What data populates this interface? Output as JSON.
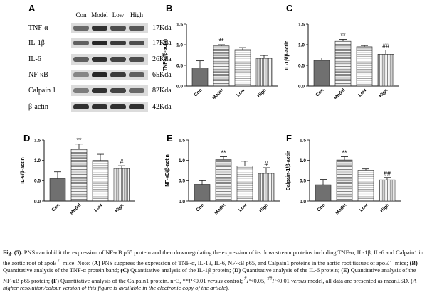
{
  "blot": {
    "letter": "A",
    "lanes": [
      "Con",
      "Model",
      "Low",
      "High"
    ],
    "rows": [
      {
        "protein": "TNF-α",
        "size": "17Kda",
        "intensity": [
          0.55,
          0.85,
          0.7,
          0.65
        ]
      },
      {
        "protein": "IL-1β",
        "size": "17Kda",
        "intensity": [
          0.6,
          0.9,
          0.8,
          0.7
        ]
      },
      {
        "protein": "IL-6",
        "size": "26Kda",
        "intensity": [
          0.6,
          0.85,
          0.75,
          0.7
        ]
      },
      {
        "protein": "NF-κB",
        "size": "65Kda",
        "intensity": [
          0.4,
          0.9,
          0.8,
          0.6
        ]
      },
      {
        "protein": "Calpain 1",
        "size": "82Kda",
        "intensity": [
          0.45,
          0.85,
          0.75,
          0.55
        ]
      },
      {
        "protein": "β-actin",
        "size": "42Kda",
        "intensity": [
          0.85,
          0.85,
          0.85,
          0.85
        ]
      }
    ]
  },
  "chart_data": [
    {
      "panel": "B",
      "type": "bar",
      "ylabel": "TNF-α/β-actin",
      "categories": [
        "Con",
        "Model",
        "Low",
        "High"
      ],
      "values": [
        0.44,
        0.97,
        0.88,
        0.67
      ],
      "errors": [
        0.17,
        0.03,
        0.05,
        0.07
      ],
      "ylim": [
        0,
        1.5
      ],
      "yticks": [
        "0.0",
        "0.5",
        "1.0",
        "1.5"
      ],
      "annotations": [
        "",
        "**",
        "",
        ""
      ]
    },
    {
      "panel": "C",
      "type": "bar",
      "ylabel": "IL-1β/β-actin",
      "categories": [
        "Con",
        "Model",
        "Low",
        "High"
      ],
      "values": [
        0.62,
        1.1,
        0.95,
        0.77
      ],
      "errors": [
        0.06,
        0.03,
        0.03,
        0.1
      ],
      "ylim": [
        0,
        1.5
      ],
      "yticks": [
        "0.0",
        "0.5",
        "1.0",
        "1.5"
      ],
      "annotations": [
        "",
        "**",
        "",
        "##"
      ]
    },
    {
      "panel": "D",
      "type": "bar",
      "ylabel": "IL-6/β-actin",
      "categories": [
        "Con",
        "Model",
        "Low",
        "High"
      ],
      "values": [
        0.55,
        1.27,
        1.0,
        0.8
      ],
      "errors": [
        0.17,
        0.13,
        0.15,
        0.07
      ],
      "ylim": [
        0,
        1.5
      ],
      "yticks": [
        "0.0",
        "0.5",
        "1.0",
        "1.5"
      ],
      "annotations": [
        "",
        "**",
        "",
        "#"
      ]
    },
    {
      "panel": "E",
      "type": "bar",
      "ylabel": "NF-κB/β-actin",
      "categories": [
        "Con",
        "Model",
        "Low",
        "High"
      ],
      "values": [
        0.41,
        1.02,
        0.86,
        0.68
      ],
      "errors": [
        0.09,
        0.07,
        0.12,
        0.14
      ],
      "ylim": [
        0,
        1.5
      ],
      "yticks": [
        "0.0",
        "0.5",
        "1.0",
        "1.5"
      ],
      "annotations": [
        "",
        "**",
        "",
        "#"
      ]
    },
    {
      "panel": "F",
      "type": "bar",
      "ylabel": "Calpain-1/β-actin",
      "categories": [
        "Con",
        "Model",
        "Low",
        "High"
      ],
      "values": [
        0.4,
        1.01,
        0.76,
        0.52
      ],
      "errors": [
        0.13,
        0.08,
        0.03,
        0.06
      ],
      "ylim": [
        0,
        1.5
      ],
      "yticks": [
        "0.0",
        "0.5",
        "1.0",
        "1.5"
      ],
      "annotations": [
        "",
        "**",
        "",
        "##"
      ]
    }
  ],
  "colors": {
    "con_fill": "#707070",
    "bar_stroke": "#222222"
  },
  "caption": {
    "fig_label": "Fig. (5).",
    "line1": " PNS can inhibit the expression of NF-κB p65 protein and then downregulating the expression of its downstream proteins including TNF-α,",
    "line2": "IL-1β, IL-6 and Calpain1 in the aortic root of apoE",
    "sup1": "-/-",
    "line2b": " mice. Note: ",
    "line2c": "(A)",
    "line2d": " PNS suppress the expression of TNF-α, IL-1β, IL-6, NF-κB p65, and Calpain1",
    "line3": "proteins in the aortic root tissues of apoE",
    "sup2": "-/-",
    "line3b": " mice; ",
    "line3c": "(B)",
    "line3d": " Quantitative analysis of the TNF-α protein band; ",
    "line3e": "(C)",
    "line3f": " Quantitative analysis of the IL-1β protein;",
    "line4a": "(D)",
    "line4b": " Quantitative analysis of the IL-6 protein; ",
    "line4c": "(E)",
    "line4d": " Quantitative analysis of the NF-κB p65 protein; ",
    "line4e": "(F)",
    "line4f": " Quantitative analysis of the Calpain1 protein.",
    "line5": "n=3, **",
    "line5b": "P",
    "line5c": "<0.01 ",
    "line5d": "versus",
    "line5e": " control; ",
    "sup3": "#",
    "line5f": "P",
    "line5g": "<0.05, ",
    "sup4": "##",
    "line5h": "P",
    "line5i": "<0.01 ",
    "line5j": "versus",
    "line5k": " model, all data are presented as mean±SD. (",
    "line5l": "A higher resolution/colour version of this figure",
    "line6": "is available in the electronic copy of the article",
    "line6b": ")."
  }
}
